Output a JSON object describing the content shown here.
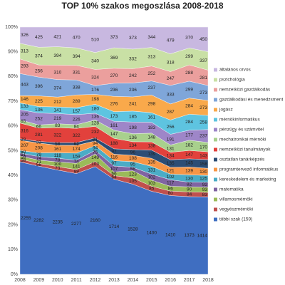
{
  "chart_data": {
    "type": "stacked_area_percent",
    "title": "TOP 10% szakos megoszlása 2008-2018",
    "categories": [
      "2008",
      "2009",
      "2010",
      "2011",
      "2012",
      "2013",
      "2014",
      "2015",
      "2016",
      "2017",
      "2018"
    ],
    "ylim": [
      0,
      100
    ],
    "yticks": [
      {
        "value": 0,
        "label": "0%"
      },
      {
        "value": 10,
        "label": "10%"
      },
      {
        "value": 20,
        "label": "20%"
      },
      {
        "value": 30,
        "label": "30%"
      },
      {
        "value": 40,
        "label": "40%"
      },
      {
        "value": 50,
        "label": "50%"
      },
      {
        "value": 60,
        "label": "60%"
      },
      {
        "value": 70,
        "label": "70%"
      },
      {
        "value": 80,
        "label": "80%"
      },
      {
        "value": 90,
        "label": "90%"
      },
      {
        "value": 100,
        "label": "100%"
      }
    ],
    "grid": true,
    "legend": "right",
    "series": [
      {
        "name": "többi szak (159)",
        "color": "#3f6ec1",
        "values": [
          2255,
          2282,
          2235,
          2277,
          2160,
          1714,
          1528,
          1400,
          1410,
          1373,
          1414
        ]
      },
      {
        "name": "vegyészmérnöki",
        "color": "#c0504d",
        "values": [
          58,
          56,
          73,
          89,
          103,
          64,
          105,
          85,
          80,
          84,
          83
        ]
      },
      {
        "name": "villamosmérnöki",
        "color": "#9bbb59",
        "values": [
          58,
          71,
          100,
          141,
          149,
          66,
          123,
          103,
          86,
          90,
          93
        ]
      },
      {
        "name": "matematika",
        "color": "#8064a2",
        "values": [
          61,
          74,
          78,
          74,
          75,
          107,
          58,
          102,
          117,
          82,
          92
        ]
      },
      {
        "name": "kereskedelem és marketing",
        "color": "#4bacc6",
        "values": [
          50,
          79,
          118,
          159,
          94,
          97,
          95,
          131,
          102,
          130,
          125
        ]
      },
      {
        "name": "programtervező informatikus",
        "color": "#f79646",
        "values": [
          207,
          208,
          161,
          174,
          94,
          116,
          108,
          135,
          121,
          139,
          130
        ]
      },
      {
        "name": "osztatlan tanárképzés",
        "color": "#2c4d75",
        "values": [
          29,
          33,
          56,
          62,
          61,
          97,
          96,
          139,
          135,
          145,
          158
        ]
      },
      {
        "name": "nemzetközi tanulmányok",
        "color": "#e2413c",
        "values": [
          316,
          281,
          322,
          322,
          232,
          188,
          134,
          138,
          134,
          147,
          143
        ]
      },
      {
        "name": "mechatronikai mérnöki",
        "color": "#a8d08d",
        "values": [
          65,
          66,
          83,
          84,
          128,
          147,
          136,
          148,
          131,
          182,
          170
        ]
      },
      {
        "name": "pénzügy és számvitel",
        "color": "#9e86c8",
        "values": [
          205,
          252,
          219,
          226,
          136,
          161,
          198,
          183,
          191,
          177,
          237
        ]
      },
      {
        "name": "mérnökinformatikus",
        "color": "#5ec4e0",
        "values": [
          133,
          136,
          141,
          157,
          180,
          173,
          185,
          161,
          256,
          284,
          258
        ]
      },
      {
        "name": "jogász",
        "color": "#f9a94b",
        "values": [
          146,
          225,
          212,
          289,
          198,
          276,
          241,
          298,
          287,
          284,
          273
        ]
      },
      {
        "name": "gazdálkodási és menedzsment",
        "color": "#7fa6d9",
        "values": [
          443,
          396,
          374,
          338,
          176,
          236,
          236,
          237,
          333,
          299,
          273
        ]
      },
      {
        "name": "nemzetközi gazdálkodás",
        "color": "#eb9f9d",
        "values": [
          293,
          256,
          310,
          331,
          324,
          270,
          242,
          252,
          247,
          288,
          281
        ]
      },
      {
        "name": "pszichológia",
        "color": "#c9e0a5",
        "values": [
          313,
          374,
          394,
          394,
          340,
          369,
          332,
          313,
          318,
          299,
          337
        ]
      },
      {
        "name": "általános orvos",
        "color": "#c8b8e0",
        "values": [
          326,
          425,
          421,
          470,
          510,
          373,
          373,
          344,
          479,
          370,
          450
        ]
      }
    ]
  }
}
